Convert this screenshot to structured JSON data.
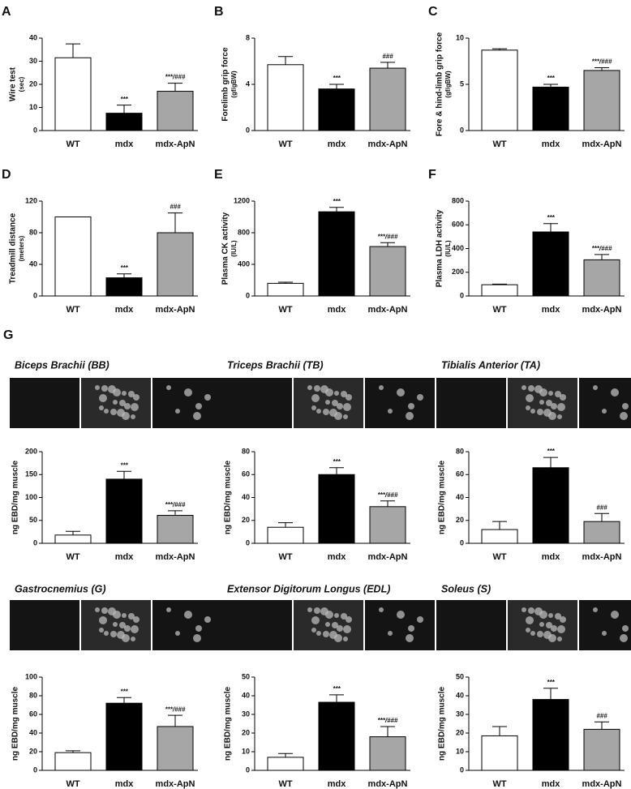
{
  "figure_label": "G",
  "chart_data": [
    {
      "type": "bar",
      "panel": "A",
      "ylabel": "Wire test",
      "yunit": "(sec)",
      "categories": [
        "WT",
        "mdx",
        "mdx-ApN"
      ],
      "values": [
        31.5,
        7.5,
        17
      ],
      "errors": [
        6,
        3.5,
        3.5
      ],
      "annotations": [
        null,
        "***",
        "***/###"
      ],
      "colors": [
        "#ffffff",
        "#000000",
        "#a6a6a6"
      ],
      "ylim": [
        0,
        40
      ],
      "yticks": [
        0,
        10,
        20,
        30,
        40
      ]
    },
    {
      "type": "bar",
      "panel": "B",
      "ylabel": "Forelimb grip force",
      "yunit": "(gf/gBW)",
      "categories": [
        "WT",
        "mdx",
        "mdx-ApN"
      ],
      "values": [
        5.7,
        3.6,
        5.4
      ],
      "errors": [
        0.7,
        0.4,
        0.5
      ],
      "annotations": [
        null,
        "***",
        "###"
      ],
      "colors": [
        "#ffffff",
        "#000000",
        "#a6a6a6"
      ],
      "ylim": [
        0,
        8
      ],
      "yticks": [
        0,
        4,
        8
      ]
    },
    {
      "type": "bar",
      "panel": "C",
      "ylabel": "Fore & hind-limb grip force",
      "yunit": "(gf/gBW)",
      "categories": [
        "WT",
        "mdx",
        "mdx-ApN"
      ],
      "values": [
        8.7,
        4.7,
        6.5
      ],
      "errors": [
        0.15,
        0.3,
        0.3
      ],
      "annotations": [
        null,
        "***",
        "***/###"
      ],
      "colors": [
        "#ffffff",
        "#000000",
        "#a6a6a6"
      ],
      "ylim": [
        0,
        10
      ],
      "yticks": [
        0,
        5,
        10
      ]
    },
    {
      "type": "bar",
      "panel": "D",
      "ylabel": "Treadmill distance",
      "yunit": "(meters)",
      "categories": [
        "WT",
        "mdx",
        "mdx-ApN"
      ],
      "values": [
        100,
        23,
        80
      ],
      "errors": [
        0,
        5,
        25
      ],
      "annotations": [
        null,
        "***",
        "###"
      ],
      "colors": [
        "#ffffff",
        "#000000",
        "#a6a6a6"
      ],
      "ylim": [
        0,
        120
      ],
      "yticks": [
        0,
        40,
        80,
        120
      ]
    },
    {
      "type": "bar",
      "panel": "E",
      "ylabel": "Plasma CK activity",
      "yunit": "(IU/L)",
      "categories": [
        "WT",
        "mdx",
        "mdx-ApN"
      ],
      "values": [
        160,
        1065,
        625
      ],
      "errors": [
        15,
        55,
        50
      ],
      "annotations": [
        null,
        "***",
        "***/###"
      ],
      "colors": [
        "#ffffff",
        "#000000",
        "#a6a6a6"
      ],
      "ylim": [
        0,
        1200
      ],
      "yticks": [
        0,
        400,
        800,
        1200
      ]
    },
    {
      "type": "bar",
      "panel": "F",
      "ylabel": "Plasma LDH activity",
      "yunit": "(IU/L)",
      "categories": [
        "WT",
        "mdx",
        "mdx-ApN"
      ],
      "values": [
        95,
        540,
        305
      ],
      "errors": [
        5,
        70,
        45
      ],
      "annotations": [
        null,
        "***",
        "***/###"
      ],
      "colors": [
        "#ffffff",
        "#000000",
        "#a6a6a6"
      ],
      "ylim": [
        0,
        800
      ],
      "yticks": [
        0,
        200,
        400,
        600,
        800
      ]
    },
    {
      "type": "bar",
      "title": "Biceps Brachii (BB)",
      "ylabel": "ng EBD/mg muscle",
      "categories": [
        "WT",
        "mdx",
        "mdx-ApN"
      ],
      "values": [
        18,
        140,
        61
      ],
      "errors": [
        8,
        17,
        10
      ],
      "annotations": [
        null,
        "***",
        "***/###"
      ],
      "colors": [
        "#ffffff",
        "#000000",
        "#a6a6a6"
      ],
      "ylim": [
        0,
        200
      ],
      "yticks": [
        0,
        50,
        100,
        150,
        200
      ]
    },
    {
      "type": "bar",
      "title": "Triceps Brachii (TB)",
      "ylabel": "ng EBD/mg muscle",
      "categories": [
        "WT",
        "mdx",
        "mdx-ApN"
      ],
      "values": [
        14,
        60,
        32
      ],
      "errors": [
        4,
        6,
        5
      ],
      "annotations": [
        null,
        "***",
        "***/###"
      ],
      "colors": [
        "#ffffff",
        "#000000",
        "#a6a6a6"
      ],
      "ylim": [
        0,
        80
      ],
      "yticks": [
        0,
        20,
        40,
        60,
        80
      ]
    },
    {
      "type": "bar",
      "title": "Tibialis Anterior (TA)",
      "ylabel": "ng EBD/mg muscle",
      "categories": [
        "WT",
        "mdx",
        "mdx-ApN"
      ],
      "values": [
        12,
        66,
        19
      ],
      "errors": [
        7,
        9,
        7
      ],
      "annotations": [
        null,
        "***",
        "###"
      ],
      "colors": [
        "#ffffff",
        "#000000",
        "#a6a6a6"
      ],
      "ylim": [
        0,
        80
      ],
      "yticks": [
        0,
        20,
        40,
        60,
        80
      ]
    },
    {
      "type": "bar",
      "title": "Gastrocnemius (G)",
      "ylabel": "ng EBD/mg muscle",
      "categories": [
        "WT",
        "mdx",
        "mdx-ApN"
      ],
      "values": [
        19,
        72,
        47
      ],
      "errors": [
        2,
        6,
        12
      ],
      "annotations": [
        null,
        "***",
        "***/###"
      ],
      "colors": [
        "#ffffff",
        "#000000",
        "#a6a6a6"
      ],
      "ylim": [
        0,
        100
      ],
      "yticks": [
        0,
        20,
        40,
        60,
        80,
        100
      ]
    },
    {
      "type": "bar",
      "title": "Extensor Digitorum Longus (EDL)",
      "ylabel": "ng EBD/mg muscle",
      "categories": [
        "WT",
        "mdx",
        "mdx-ApN"
      ],
      "values": [
        7,
        36.5,
        18
      ],
      "errors": [
        2,
        4,
        5.5
      ],
      "annotations": [
        null,
        "***",
        "***/###"
      ],
      "colors": [
        "#ffffff",
        "#000000",
        "#a6a6a6"
      ],
      "ylim": [
        0,
        50
      ],
      "yticks": [
        0,
        10,
        20,
        30,
        40,
        50
      ]
    },
    {
      "type": "bar",
      "title": "Soleus (S)",
      "ylabel": "ng EBD/mg muscle",
      "categories": [
        "WT",
        "mdx",
        "mdx-ApN"
      ],
      "values": [
        18.5,
        38,
        22
      ],
      "errors": [
        5,
        6,
        4
      ],
      "annotations": [
        null,
        "***",
        "###"
      ],
      "colors": [
        "#ffffff",
        "#000000",
        "#a6a6a6"
      ],
      "ylim": [
        0,
        50
      ],
      "yticks": [
        0,
        10,
        20,
        30,
        40,
        50
      ]
    }
  ]
}
